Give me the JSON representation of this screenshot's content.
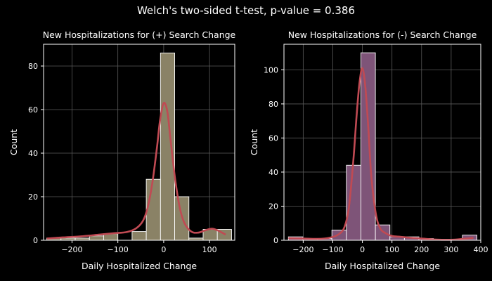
{
  "suptitle": "Welch's two-sided t-test, p-value = 0.386",
  "colors": {
    "background": "#000000",
    "left_bar": "#8a8266",
    "right_bar": "#7e5478",
    "kde": "#c04a53",
    "bar_edge": "#ffffff",
    "grid": "#5a5a5a"
  },
  "chart_data": [
    {
      "type": "bar",
      "title": "New Hospitalizations for (+) Search Change",
      "xlabel": "Daily Hospitalized Change",
      "ylabel": "Count",
      "xlim": [
        -262,
        155
      ],
      "ylim": [
        0,
        90
      ],
      "xticks": [
        -200,
        -100,
        0,
        100
      ],
      "xtick_labels": [
        "−200",
        "−100",
        "0",
        "100"
      ],
      "yticks": [
        0,
        20,
        40,
        60,
        80
      ],
      "grid": true,
      "bin_edges": [
        -255,
        -224,
        -193,
        -162,
        -131,
        -100,
        -69,
        -38,
        -7,
        24,
        55,
        86,
        117,
        148
      ],
      "values": [
        1,
        1,
        1,
        2,
        3,
        0,
        4,
        28,
        86,
        20,
        1,
        5,
        5
      ],
      "kde": {
        "x": [
          -255,
          -220,
          -180,
          -140,
          -110,
          -80,
          -60,
          -45,
          -35,
          -25,
          -15,
          -8,
          0,
          8,
          15,
          25,
          35,
          45,
          60,
          75,
          90,
          105,
          118,
          135
        ],
        "y": [
          0.8,
          1.3,
          1.8,
          2.6,
          3.2,
          3.8,
          5.5,
          9,
          15,
          26,
          42,
          55,
          63,
          59,
          46,
          28,
          15,
          8,
          4,
          3.5,
          4.5,
          5.3,
          4.5,
          2.6
        ]
      }
    },
    {
      "type": "bar",
      "title": "New Hospitalizations for (-) Search Change",
      "xlabel": "Daily Hospitalized Change",
      "ylabel": "Count",
      "xlim": [
        -265,
        400
      ],
      "ylim": [
        0,
        115
      ],
      "xticks": [
        -200,
        -100,
        0,
        100,
        200,
        300,
        400
      ],
      "xtick_labels": [
        "−200",
        "−100",
        "0",
        "100",
        "200",
        "300",
        "400"
      ],
      "yticks": [
        0,
        20,
        40,
        60,
        80,
        100
      ],
      "grid": true,
      "bin_edges": [
        -250,
        -201,
        -152,
        -103,
        -54,
        -5,
        44,
        93,
        142,
        191,
        240,
        289,
        338,
        387
      ],
      "values": [
        2,
        1,
        1,
        6,
        44,
        110,
        9,
        2,
        2,
        1,
        0,
        0,
        3
      ],
      "kde": {
        "x": [
          -250,
          -200,
          -150,
          -110,
          -80,
          -60,
          -45,
          -30,
          -20,
          -10,
          0,
          10,
          20,
          30,
          45,
          60,
          80,
          100,
          130,
          160,
          200,
          250,
          300,
          340,
          375
        ],
        "y": [
          1.2,
          1.0,
          0.8,
          1.5,
          3.5,
          8,
          20,
          48,
          72,
          92,
          101,
          90,
          66,
          38,
          16,
          7,
          4,
          2.5,
          2,
          1.5,
          1,
          0.4,
          0.3,
          0.8,
          1.4
        ]
      }
    }
  ]
}
